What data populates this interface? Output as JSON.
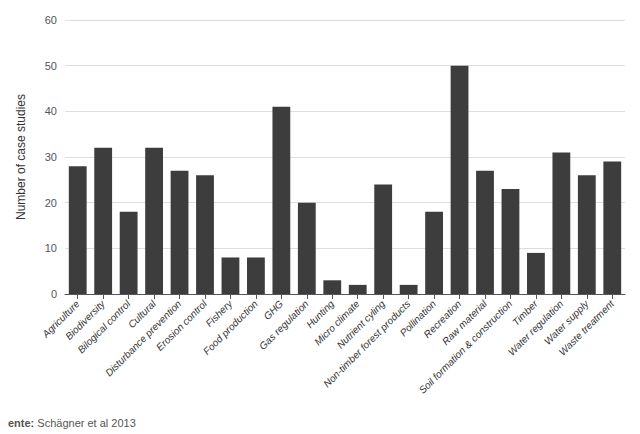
{
  "chart_data": {
    "type": "bar",
    "categories": [
      "Agriculture",
      "Biodiversity",
      "Bilogical control",
      "Cultural",
      "Disturbance prevention",
      "Erosion control",
      "Fishery",
      "Food production",
      "GHG",
      "Gas regulation",
      "Hunting",
      "Micro climate",
      "Nutrient cyling",
      "Non-timber forest products",
      "Pollination",
      "Recreation",
      "Raw material",
      "Soil formation & construction",
      "Timber",
      "Water regulation",
      "Water supply",
      "Waste treatment"
    ],
    "values": [
      28,
      32,
      18,
      32,
      27,
      26,
      8,
      8,
      41,
      20,
      3,
      2,
      24,
      2,
      18,
      50,
      27,
      23,
      9,
      31,
      26,
      29
    ],
    "color": "#3d3d3d",
    "ylabel": "Number of case studies",
    "ylim": [
      0,
      60
    ],
    "yticks": [
      0,
      10,
      20,
      30,
      40,
      50,
      60
    ],
    "grid": true,
    "annotations": [
      "ente:",
      "Schägner et al 2013"
    ]
  }
}
